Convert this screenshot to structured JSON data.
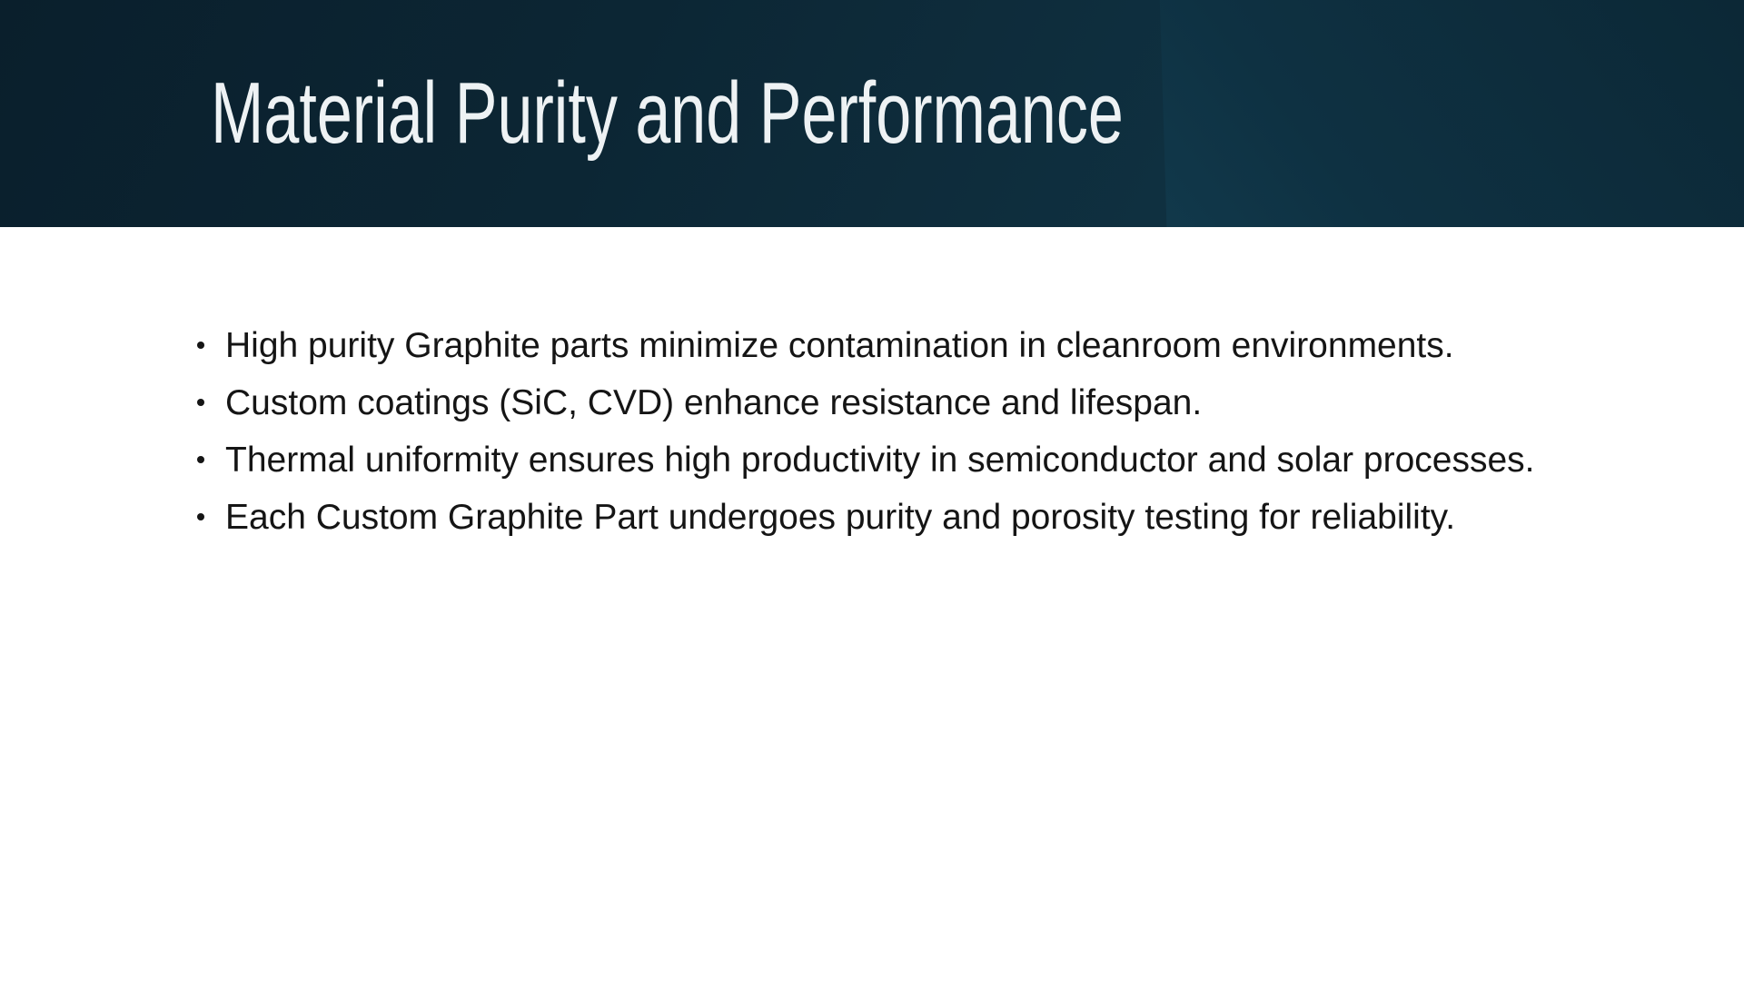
{
  "slide": {
    "title": "Material Purity and Performance",
    "bullets": [
      "High purity Graphite parts minimize contamination in cleanroom environments.",
      "Custom coatings (SiC, CVD) enhance resistance and lifespan.",
      "Thermal uniformity ensures high productivity in semiconductor and solar processes.",
      "Each Custom Graphite Part undergoes purity and porosity testing for reliability."
    ],
    "colors": {
      "header_dark": "#0a1f2c",
      "header_mid": "#0f3040",
      "header_edge": "#134252",
      "header_panel_light": "#1e5669",
      "header_panel_dark": "#0c2836",
      "title_text": "#eef2f4",
      "body_text": "#151515",
      "background": "#ffffff"
    }
  }
}
